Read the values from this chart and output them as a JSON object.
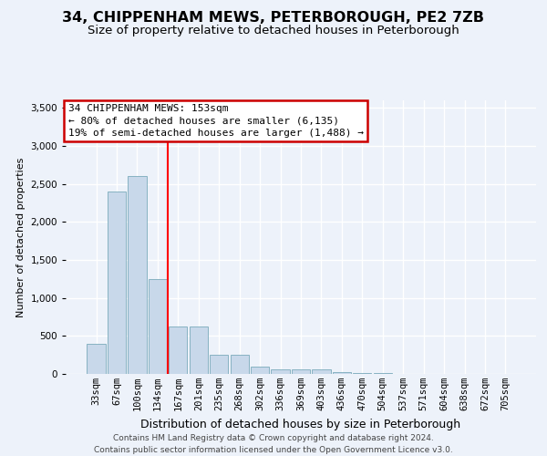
{
  "title": "34, CHIPPENHAM MEWS, PETERBOROUGH, PE2 7ZB",
  "subtitle": "Size of property relative to detached houses in Peterborough",
  "xlabel": "Distribution of detached houses by size in Peterborough",
  "ylabel": "Number of detached properties",
  "footer_line1": "Contains HM Land Registry data © Crown copyright and database right 2024.",
  "footer_line2": "Contains public sector information licensed under the Open Government Licence v3.0.",
  "bar_labels": [
    "33sqm",
    "67sqm",
    "100sqm",
    "134sqm",
    "167sqm",
    "201sqm",
    "235sqm",
    "268sqm",
    "302sqm",
    "336sqm",
    "369sqm",
    "403sqm",
    "436sqm",
    "470sqm",
    "504sqm",
    "537sqm",
    "571sqm",
    "604sqm",
    "638sqm",
    "672sqm",
    "705sqm"
  ],
  "bar_values": [
    400,
    2400,
    2600,
    1250,
    620,
    620,
    250,
    250,
    100,
    65,
    65,
    55,
    30,
    15,
    10,
    5,
    5,
    3,
    3,
    2,
    2
  ],
  "bar_color": "#c8d8ea",
  "bar_edge_color": "#7aaabb",
  "red_line_x": 3.5,
  "annotation_line1": "34 CHIPPENHAM MEWS: 153sqm",
  "annotation_line2": "← 80% of detached houses are smaller (6,135)",
  "annotation_line3": "19% of semi-detached houses are larger (1,488) →",
  "annotation_box_facecolor": "#ffffff",
  "annotation_box_edgecolor": "#cc0000",
  "ylim_max": 3600,
  "yticks": [
    0,
    500,
    1000,
    1500,
    2000,
    2500,
    3000,
    3500
  ],
  "bg_color": "#edf2fa",
  "title_fontsize": 11.5,
  "subtitle_fontsize": 9.5,
  "xlabel_fontsize": 9,
  "ylabel_fontsize": 8,
  "tick_fontsize": 7.5,
  "annotation_fontsize": 8,
  "footer_fontsize": 6.5
}
